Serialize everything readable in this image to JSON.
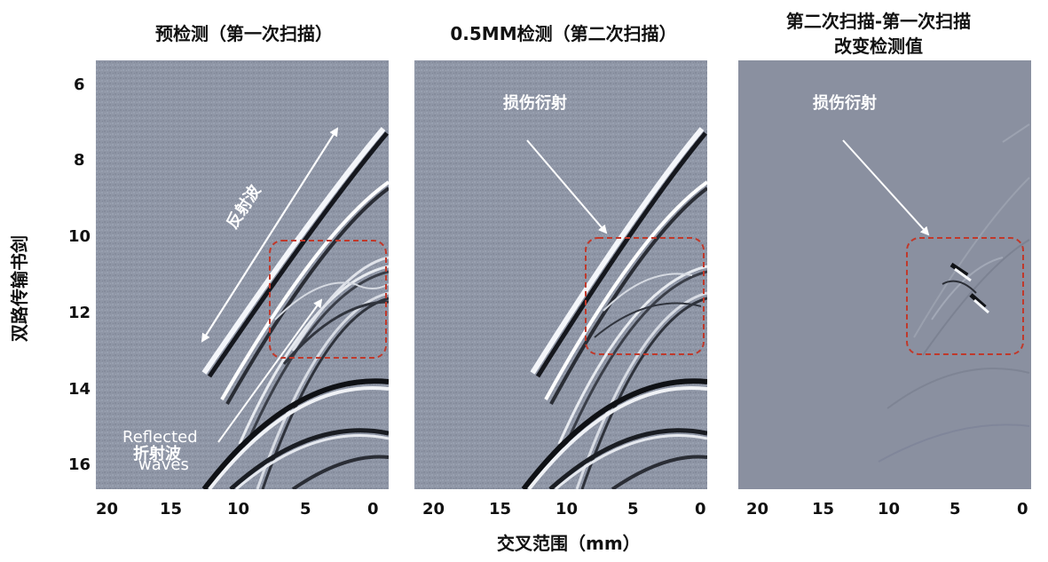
{
  "panels": [
    {
      "title": "预检测（第一次扫描）"
    },
    {
      "title": "0.5MM检测（第二次扫描）"
    },
    {
      "title_line1": "第二次扫描-第一次扫描",
      "title_line2": "改变检测值"
    }
  ],
  "annotations": {
    "reflected_wave_cn": "反射波",
    "refracted_wave_cn": "折射波",
    "reflected_waves_en_1": "Reflected",
    "reflected_waves_en_2": "waves",
    "damage_diffraction": "损伤衍射"
  },
  "axes": {
    "y_label": "双路传输书剑",
    "y_ticks": [
      "6",
      "8",
      "10",
      "12",
      "14",
      "16"
    ],
    "x_label": "交叉范围（mm）",
    "x_ticks": [
      "20",
      "15",
      "10",
      "5",
      "0"
    ]
  },
  "colors": {
    "panel_gray": "#8f96a6",
    "diff_gray": "#8a90a0",
    "box_red": "#c0392b"
  }
}
